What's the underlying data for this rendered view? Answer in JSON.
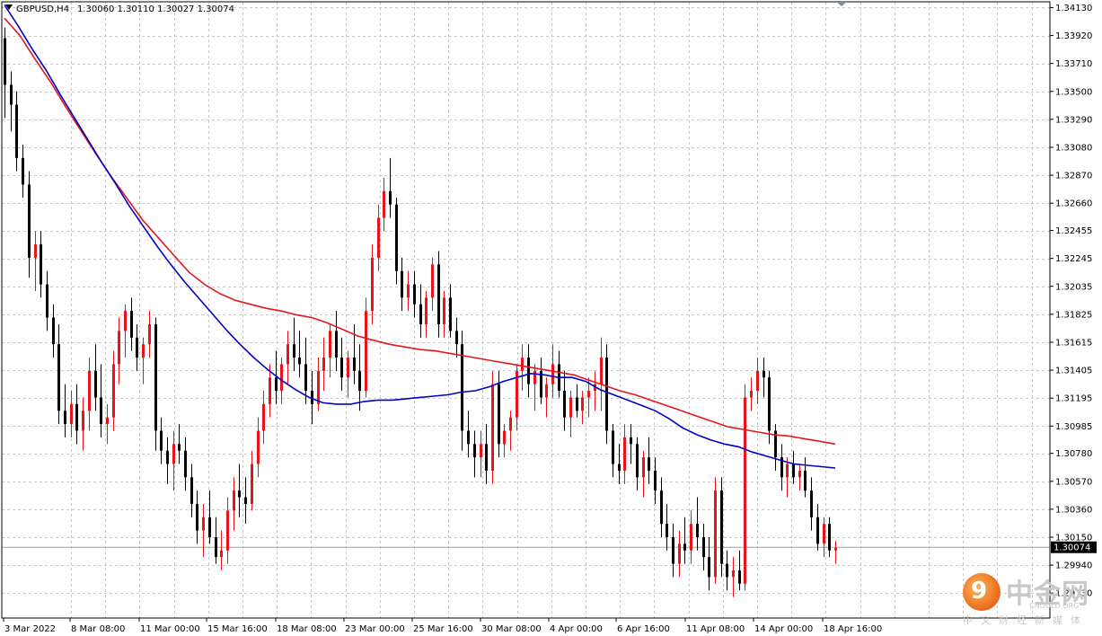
{
  "header": {
    "symbol_timeframe": "GBPUSD,H4",
    "ohlc": "1.30060 1.30110 1.30027 1.30074"
  },
  "price_axis": {
    "labels": [
      "1.34130",
      "1.33920",
      "1.33710",
      "1.33500",
      "1.33290",
      "1.33080",
      "1.32870",
      "1.32660",
      "1.32455",
      "1.32245",
      "1.32035",
      "1.31825",
      "1.31615",
      "1.31405",
      "1.31195",
      "1.30985",
      "1.30780",
      "1.30570",
      "1.30360",
      "1.30150",
      "1.29940",
      "1.29730"
    ],
    "current_price_label": "1.30074"
  },
  "time_axis": {
    "labels": [
      "3 Mar 2022",
      "8 Mar 08:00",
      "11 Mar 00:00",
      "15 Mar 16:00",
      "18 Mar 08:00",
      "23 Mar 00:00",
      "25 Mar 16:00",
      "30 Mar 08:00",
      "4 Apr 00:00",
      "6 Apr 16:00",
      "11 Apr 08:00",
      "14 Apr 00:00",
      "18 Apr 16:00"
    ]
  },
  "watermark": {
    "title": "中金网",
    "url": "CNGOLD.ORG",
    "subtitle": "中文财经新媒体"
  },
  "colors": {
    "bull": "#e8141c",
    "bear": "#000000",
    "ma_fast": "#0000c8",
    "ma_slow": "#e8141c",
    "grid": "#c8c8c8",
    "price_tag_bg": "#000000",
    "price_tag_fg": "#ffffff"
  },
  "chart_data": {
    "type": "candlestick",
    "instrument": "GBPUSD",
    "timeframe": "H4",
    "ylim": [
      1.2963,
      1.3416
    ],
    "current_price": 1.30074,
    "ohlc": [
      [
        1.339,
        1.3398,
        1.333,
        1.3355
      ],
      [
        1.3355,
        1.3365,
        1.332,
        1.334
      ],
      [
        1.334,
        1.335,
        1.329,
        1.33
      ],
      [
        1.33,
        1.331,
        1.327,
        1.328
      ],
      [
        1.328,
        1.329,
        1.321,
        1.3225
      ],
      [
        1.3225,
        1.3245,
        1.32,
        1.3235
      ],
      [
        1.3235,
        1.3245,
        1.3195,
        1.3205
      ],
      [
        1.3205,
        1.3215,
        1.317,
        1.318
      ],
      [
        1.318,
        1.319,
        1.315,
        1.316
      ],
      [
        1.316,
        1.3175,
        1.31,
        1.311
      ],
      [
        1.311,
        1.313,
        1.309,
        1.31
      ],
      [
        1.31,
        1.3125,
        1.309,
        1.3115
      ],
      [
        1.3115,
        1.313,
        1.3085,
        1.3095
      ],
      [
        1.3095,
        1.312,
        1.308,
        1.311
      ],
      [
        1.311,
        1.315,
        1.3095,
        1.314
      ],
      [
        1.314,
        1.316,
        1.311,
        1.312
      ],
      [
        1.312,
        1.3145,
        1.309,
        1.31
      ],
      [
        1.31,
        1.3115,
        1.3085,
        1.3105
      ],
      [
        1.3105,
        1.3155,
        1.3095,
        1.3145
      ],
      [
        1.3145,
        1.318,
        1.313,
        1.317
      ],
      [
        1.317,
        1.319,
        1.315,
        1.3185
      ],
      [
        1.3185,
        1.3195,
        1.3155,
        1.3165
      ],
      [
        1.3165,
        1.3175,
        1.314,
        1.315
      ],
      [
        1.315,
        1.3165,
        1.313,
        1.316
      ],
      [
        1.316,
        1.3185,
        1.315,
        1.3175
      ],
      [
        1.3175,
        1.318,
        1.308,
        1.3095
      ],
      [
        1.3095,
        1.3105,
        1.307,
        1.308
      ],
      [
        1.308,
        1.309,
        1.3055,
        1.307
      ],
      [
        1.307,
        1.3095,
        1.305,
        1.3085
      ],
      [
        1.3085,
        1.31,
        1.307,
        1.308
      ],
      [
        1.308,
        1.309,
        1.305,
        1.306
      ],
      [
        1.306,
        1.307,
        1.303,
        1.304
      ],
      [
        1.304,
        1.305,
        1.301,
        1.302
      ],
      [
        1.302,
        1.304,
        1.3,
        1.303
      ],
      [
        1.303,
        1.305,
        1.301,
        1.3015
      ],
      [
        1.3015,
        1.303,
        1.2995,
        1.3
      ],
      [
        1.3,
        1.302,
        1.299,
        1.3005
      ],
      [
        1.3005,
        1.3045,
        1.2995,
        1.3035
      ],
      [
        1.3035,
        1.306,
        1.302,
        1.305
      ],
      [
        1.305,
        1.307,
        1.303,
        1.3045
      ],
      [
        1.3045,
        1.306,
        1.3025,
        1.304
      ],
      [
        1.304,
        1.308,
        1.3035,
        1.307
      ],
      [
        1.307,
        1.3105,
        1.306,
        1.3095
      ],
      [
        1.3095,
        1.3125,
        1.3085,
        1.3115
      ],
      [
        1.3115,
        1.3145,
        1.3105,
        1.3135
      ],
      [
        1.3135,
        1.3155,
        1.3115,
        1.3125
      ],
      [
        1.3125,
        1.315,
        1.3115,
        1.3145
      ],
      [
        1.3145,
        1.317,
        1.313,
        1.316
      ],
      [
        1.316,
        1.318,
        1.314,
        1.315
      ],
      [
        1.315,
        1.317,
        1.3135,
        1.3145
      ],
      [
        1.3145,
        1.3165,
        1.3115,
        1.3125
      ],
      [
        1.3125,
        1.314,
        1.31,
        1.3115
      ],
      [
        1.3115,
        1.315,
        1.311,
        1.314
      ],
      [
        1.314,
        1.3165,
        1.3125,
        1.315
      ],
      [
        1.315,
        1.3175,
        1.3135,
        1.317
      ],
      [
        1.317,
        1.3185,
        1.314,
        1.315
      ],
      [
        1.315,
        1.3165,
        1.3125,
        1.3135
      ],
      [
        1.3135,
        1.3155,
        1.312,
        1.315
      ],
      [
        1.315,
        1.3175,
        1.313,
        1.314
      ],
      [
        1.314,
        1.316,
        1.311,
        1.3125
      ],
      [
        1.3125,
        1.3195,
        1.312,
        1.3185
      ],
      [
        1.3185,
        1.3235,
        1.3175,
        1.3225
      ],
      [
        1.3225,
        1.3265,
        1.3215,
        1.3255
      ],
      [
        1.3255,
        1.3285,
        1.3245,
        1.3275
      ],
      [
        1.3275,
        1.33,
        1.3255,
        1.3265
      ],
      [
        1.3265,
        1.327,
        1.3205,
        1.3215
      ],
      [
        1.3215,
        1.3225,
        1.3185,
        1.3195
      ],
      [
        1.3195,
        1.3215,
        1.3185,
        1.3205
      ],
      [
        1.3205,
        1.3215,
        1.318,
        1.319
      ],
      [
        1.319,
        1.3205,
        1.3165,
        1.3175
      ],
      [
        1.3175,
        1.32,
        1.3165,
        1.3195
      ],
      [
        1.3195,
        1.3225,
        1.3185,
        1.322
      ],
      [
        1.322,
        1.323,
        1.3165,
        1.3175
      ],
      [
        1.3175,
        1.32,
        1.3165,
        1.3195
      ],
      [
        1.3195,
        1.3205,
        1.3165,
        1.317
      ],
      [
        1.317,
        1.318,
        1.315,
        1.316
      ],
      [
        1.316,
        1.317,
        1.308,
        1.3095
      ],
      [
        1.3095,
        1.311,
        1.3075,
        1.3085
      ],
      [
        1.3085,
        1.3095,
        1.306,
        1.3075
      ],
      [
        1.3075,
        1.3095,
        1.306,
        1.3085
      ],
      [
        1.3085,
        1.31,
        1.3055,
        1.3065
      ],
      [
        1.3065,
        1.314,
        1.3055,
        1.313
      ],
      [
        1.313,
        1.314,
        1.3075,
        1.3085
      ],
      [
        1.3085,
        1.31,
        1.3075,
        1.3095
      ],
      [
        1.3095,
        1.311,
        1.308,
        1.3105
      ],
      [
        1.3105,
        1.3145,
        1.3095,
        1.314
      ],
      [
        1.314,
        1.316,
        1.3125,
        1.315
      ],
      [
        1.315,
        1.316,
        1.312,
        1.313
      ],
      [
        1.313,
        1.3145,
        1.311,
        1.314
      ],
      [
        1.314,
        1.315,
        1.3115,
        1.312
      ],
      [
        1.312,
        1.3135,
        1.3105,
        1.313
      ],
      [
        1.313,
        1.316,
        1.312,
        1.3145
      ],
      [
        1.3145,
        1.3155,
        1.312,
        1.3125
      ],
      [
        1.3125,
        1.314,
        1.3095,
        1.3105
      ],
      [
        1.3105,
        1.3125,
        1.309,
        1.312
      ],
      [
        1.312,
        1.313,
        1.3105,
        1.311
      ],
      [
        1.311,
        1.3125,
        1.31,
        1.312
      ],
      [
        1.312,
        1.3135,
        1.3105,
        1.3125
      ],
      [
        1.3125,
        1.314,
        1.311,
        1.313
      ],
      [
        1.313,
        1.3165,
        1.311,
        1.315
      ],
      [
        1.315,
        1.316,
        1.3085,
        1.3095
      ],
      [
        1.3095,
        1.31,
        1.306,
        1.307
      ],
      [
        1.307,
        1.3085,
        1.3055,
        1.3065
      ],
      [
        1.3065,
        1.31,
        1.3055,
        1.309
      ],
      [
        1.309,
        1.31,
        1.307,
        1.3085
      ],
      [
        1.3085,
        1.309,
        1.305,
        1.306
      ],
      [
        1.306,
        1.308,
        1.3045,
        1.3075
      ],
      [
        1.3075,
        1.309,
        1.3055,
        1.3065
      ],
      [
        1.3065,
        1.3075,
        1.304,
        1.305
      ],
      [
        1.305,
        1.306,
        1.3015,
        1.3025
      ],
      [
        1.3025,
        1.304,
        1.3005,
        1.3015
      ],
      [
        1.3015,
        1.3025,
        1.2985,
        1.2995
      ],
      [
        1.2995,
        1.302,
        1.2985,
        1.301
      ],
      [
        1.301,
        1.303,
        1.2995,
        1.3005
      ],
      [
        1.3005,
        1.3035,
        1.2995,
        1.3025
      ],
      [
        1.3025,
        1.3045,
        1.3005,
        1.3015
      ],
      [
        1.3015,
        1.3025,
        1.299,
        1.3
      ],
      [
        1.3,
        1.3015,
        1.2975,
        1.2985
      ],
      [
        1.2985,
        1.306,
        1.298,
        1.305
      ],
      [
        1.305,
        1.306,
        1.2985,
        1.2995
      ],
      [
        1.2995,
        1.3005,
        1.2975,
        1.2985
      ],
      [
        1.2985,
        1.3,
        1.297,
        1.299
      ],
      [
        1.299,
        1.3005,
        1.2975,
        1.298
      ],
      [
        1.298,
        1.313,
        1.2975,
        1.312
      ],
      [
        1.312,
        1.3135,
        1.311,
        1.3125
      ],
      [
        1.3125,
        1.315,
        1.3115,
        1.314
      ],
      [
        1.314,
        1.315,
        1.312,
        1.3135
      ],
      [
        1.3135,
        1.314,
        1.3085,
        1.3095
      ],
      [
        1.3095,
        1.31,
        1.3065,
        1.3075
      ],
      [
        1.3075,
        1.3085,
        1.305,
        1.306
      ],
      [
        1.306,
        1.3075,
        1.3045,
        1.307
      ],
      [
        1.307,
        1.308,
        1.3055,
        1.306
      ],
      [
        1.306,
        1.307,
        1.305,
        1.3065
      ],
      [
        1.3065,
        1.3075,
        1.3045,
        1.305
      ],
      [
        1.305,
        1.306,
        1.302,
        1.303
      ],
      [
        1.303,
        1.304,
        1.3005,
        1.301
      ],
      [
        1.301,
        1.303,
        1.3,
        1.3025
      ],
      [
        1.3025,
        1.303,
        1.3,
        1.3005
      ],
      [
        1.3005,
        1.3012,
        1.2995,
        1.3007
      ]
    ],
    "series": [
      {
        "name": "",
        "values": [
          1.3415,
          1.3399,
          1.3382,
          1.3366,
          1.3348,
          1.3331,
          1.3314,
          1.3297,
          1.3281,
          1.3264,
          1.3249,
          1.3234,
          1.322,
          1.3207,
          1.3195,
          1.3183,
          1.3171,
          1.316,
          1.315,
          1.3141,
          1.3133,
          1.3126,
          1.312,
          1.3116,
          1.3115,
          1.3115,
          1.3117,
          1.3118,
          1.3118,
          1.3119,
          1.312,
          1.3121,
          1.3122,
          1.3124,
          1.3125,
          1.3128,
          1.3132,
          1.3135,
          1.3138,
          1.3137,
          1.3135,
          1.3135,
          1.3132,
          1.3126,
          1.3122,
          1.3118,
          1.3114,
          1.311,
          1.3104,
          1.3097,
          1.3092,
          1.3088,
          1.3085,
          1.3083,
          1.3079,
          1.3076,
          1.3073,
          1.307,
          1.3069,
          1.3068,
          1.3067
        ]
      },
      {
        "name": "",
        "values": [
          1.3405,
          1.3392,
          1.3374,
          1.3357,
          1.3338,
          1.332,
          1.3302,
          1.3285,
          1.3269,
          1.3253,
          1.324,
          1.3227,
          1.3214,
          1.3205,
          1.3198,
          1.3193,
          1.319,
          1.3187,
          1.3185,
          1.3182,
          1.318,
          1.3176,
          1.3171,
          1.3166,
          1.3163,
          1.316,
          1.3158,
          1.3156,
          1.3155,
          1.3153,
          1.3151,
          1.3149,
          1.3147,
          1.3145,
          1.3143,
          1.3141,
          1.3139,
          1.3137,
          1.3133,
          1.3129,
          1.3125,
          1.3122,
          1.3118,
          1.3114,
          1.311,
          1.3106,
          1.3102,
          1.3098,
          1.3096,
          1.3094,
          1.3092,
          1.3091,
          1.3089,
          1.3087,
          1.3085
        ]
      }
    ]
  }
}
